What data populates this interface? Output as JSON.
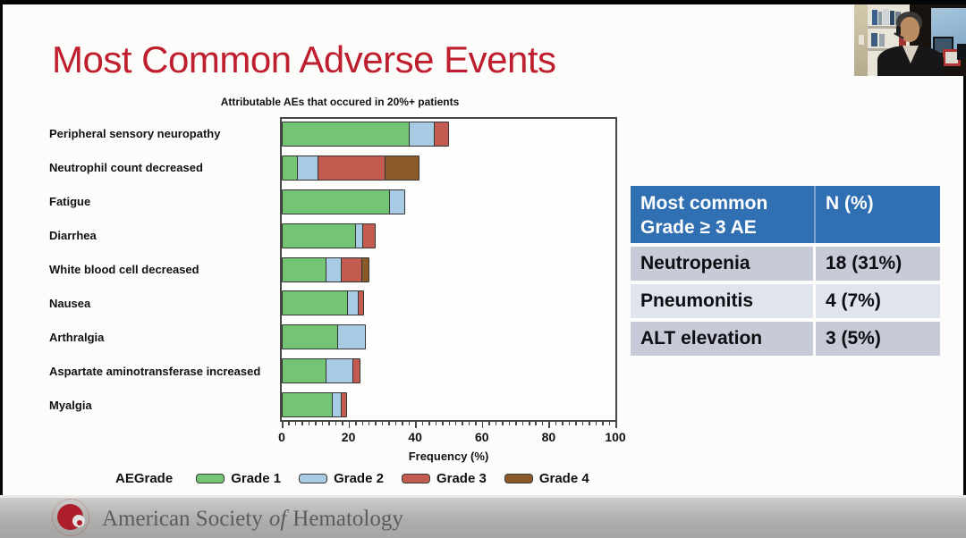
{
  "slide": {
    "title": "Most Common Adverse Events",
    "title_color": "#BE1E2D"
  },
  "chart_data": {
    "type": "bar",
    "orientation": "horizontal",
    "stacked": true,
    "title": "Attributable AEs that occured in 20%+ patients",
    "xlabel": "Frequency (%)",
    "xlim": [
      0,
      100
    ],
    "x_major_ticks": [
      0,
      20,
      40,
      60,
      80,
      100
    ],
    "x_minor_tick_step": 2,
    "grid": false,
    "legend_position": "bottom",
    "legend_title": "AEGrade",
    "categories": [
      "Peripheral sensory neuropathy",
      "Neutrophil count decreased",
      "Fatigue",
      "Diarrhea",
      "White blood cell decreased",
      "Nausea",
      "Arthralgia",
      "Aspartate aminotransferase increased",
      "Myalgia"
    ],
    "series": [
      {
        "name": "Grade 1",
        "color": "#74C476",
        "values": [
          38.5,
          5,
          32.5,
          22.5,
          13.5,
          20,
          17,
          13.5,
          15.5
        ]
      },
      {
        "name": "Grade 2",
        "color": "#A6CBE3",
        "values": [
          8,
          6.5,
          5,
          2.5,
          5,
          3.5,
          8.5,
          8.5,
          3
        ]
      },
      {
        "name": "Grade 3",
        "color": "#C25B50",
        "values": [
          4.5,
          20.5,
          0,
          4,
          6.5,
          2,
          0,
          2.5,
          2
        ]
      },
      {
        "name": "Grade 4",
        "color": "#8B5A2B",
        "values": [
          0,
          10.5,
          0,
          0,
          2.5,
          0,
          0,
          0,
          0
        ]
      }
    ]
  },
  "summary_table": {
    "header": {
      "col1_line1": "Most common",
      "col1_line2": "Grade ≥ 3 AE",
      "col2": "N (%)"
    },
    "rows": [
      {
        "label": "Neutropenia",
        "value": "18 (31%)"
      },
      {
        "label": "Pneumonitis",
        "value": "4 (7%)"
      },
      {
        "label": "ALT elevation",
        "value": "3 (5%)"
      }
    ],
    "header_bg": "#2F6FB2",
    "row_bg_dark": "#C7CBD7",
    "row_bg_light": "#E0E4ED"
  },
  "footer": {
    "org_part1": "American Society",
    "org_part2": "of",
    "org_part3": "Hematology"
  }
}
